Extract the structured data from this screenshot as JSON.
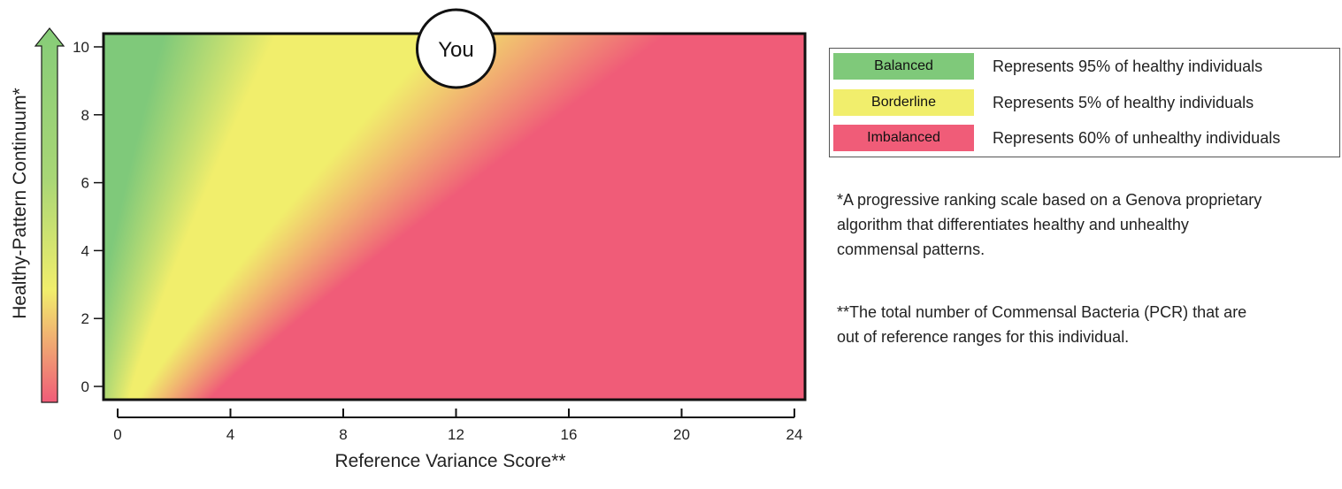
{
  "chart_data": {
    "type": "heatmap",
    "xlabel": "Reference Variance Score**",
    "ylabel": "Healthy-Pattern Continuum*",
    "xlim": [
      0,
      24
    ],
    "ylim": [
      0,
      10
    ],
    "x_ticks": [
      "0",
      "4",
      "8",
      "12",
      "16",
      "20",
      "24"
    ],
    "y_ticks": [
      "0",
      "2",
      "4",
      "6",
      "8",
      "10"
    ],
    "marker": {
      "label": "You",
      "x": 12,
      "y": 10
    },
    "gradient_zones": [
      "Balanced",
      "Borderline",
      "Imbalanced"
    ]
  },
  "legend": {
    "rows": [
      {
        "label": "Balanced",
        "description": "Represents 95% of healthy individuals",
        "color": "#7fc97a"
      },
      {
        "label": "Borderline",
        "description": "Represents 5% of healthy individuals",
        "color": "#f1ee6c"
      },
      {
        "label": "Imbalanced",
        "description": "Represents 60% of unhealthy individuals",
        "color": "#f05c78"
      }
    ]
  },
  "notes": {
    "note1": [
      "*A progressive ranking scale based on a Genova proprietary",
      "algorithm that differentiates healthy and unhealthy",
      "commensal patterns."
    ],
    "note2": [
      "**The total number of Commensal Bacteria (PCR) that are",
      "out of reference ranges for this individual."
    ]
  },
  "colors": {
    "balanced": "#7fc97a",
    "borderline": "#f1ee6c",
    "imbalanced": "#f05c78",
    "arrow_top": "#86cc78"
  }
}
